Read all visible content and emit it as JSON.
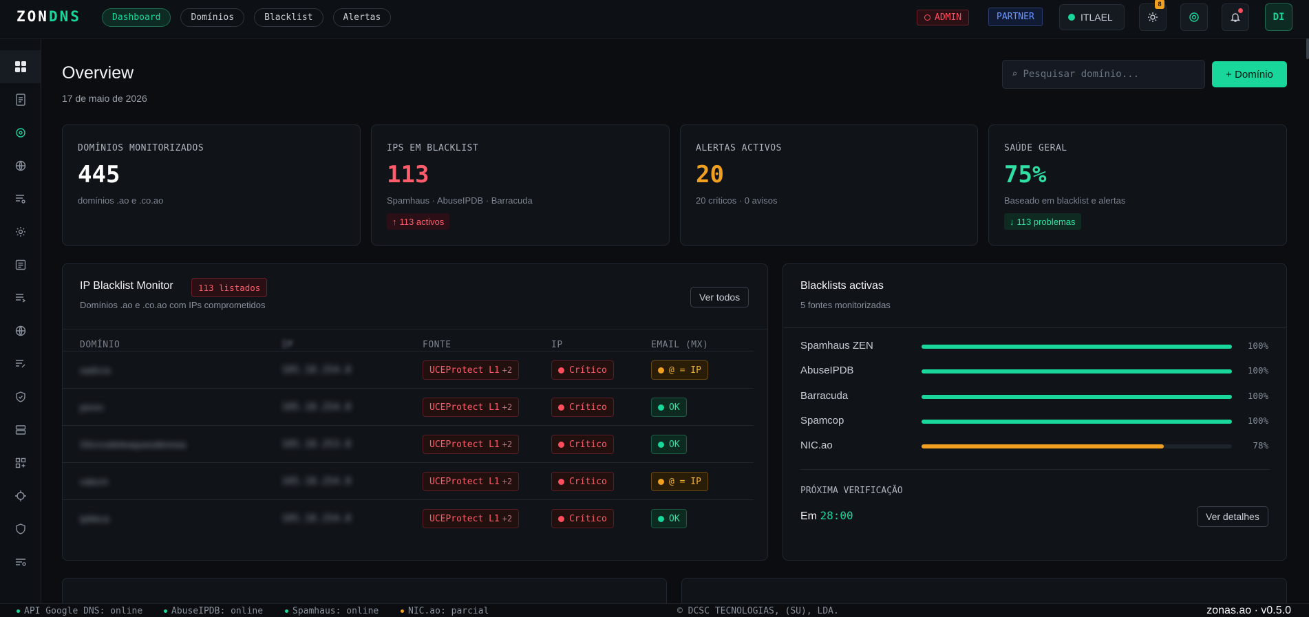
{
  "app": {
    "logo_a": "ZON",
    "logo_b": "DNS",
    "brand_color": "#19d69a"
  },
  "nav": {
    "tabs": [
      {
        "label": "Dashboard",
        "active": true
      },
      {
        "label": "Domínios"
      },
      {
        "label": "Blacklist"
      },
      {
        "label": "Alertas"
      }
    ]
  },
  "topbar": {
    "admin_label": "ADMIN",
    "partner_label": "PARTNER",
    "user_name": "ITLAEL",
    "notif_count": "8",
    "avatar_initials": "DI",
    "icons": [
      "sun-icon",
      "target-icon",
      "bell-icon"
    ]
  },
  "sidebar": {
    "items": [
      "dashboard-icon",
      "document-icon",
      "target-icon",
      "globe-icon",
      "list-settings-icon",
      "gear-icon",
      "notes-icon",
      "list-arrow-icon",
      "globe-icon",
      "list-edit-icon",
      "shield-check-icon",
      "server-icon",
      "apps-add-icon",
      "crosshair-icon",
      "shield-icon",
      "filter-list-icon"
    ]
  },
  "header": {
    "title": "Overview",
    "date": "17 de maio de 2026",
    "search_placeholder": "Pesquisar domínio...",
    "add_button": "+ Domínio"
  },
  "stats": [
    {
      "label": "DOMÍNIOS MONITORIZADOS",
      "value": "445",
      "sub": "domínios .ao e .co.ao",
      "color": "#ffffff"
    },
    {
      "label": "IPS EM BLACKLIST",
      "value": "113",
      "sub": "Spamhaus · AbuseIPDB · Barracuda",
      "chip": "113 activos",
      "color": "#ff5d6c"
    },
    {
      "label": "ALERTAS ACTIVOS",
      "value": "20",
      "sub": "20 críticos · 0 avisos",
      "color": "#f0a020"
    },
    {
      "label": "SAÚDE GERAL",
      "value": "75%",
      "sub": "Baseado em blacklist e alertas",
      "chip": "113 problemas",
      "color": "#2fe0a4"
    }
  ],
  "blacklist_monitor": {
    "title": "IP Blacklist Monitor",
    "badge": "113 listados",
    "subtitle": "Domínios .ao e .co.ao com IPs comprometidos",
    "view_all": "Ver todos",
    "columns": [
      "DOMÍNIO",
      "IP",
      "FONTE",
      "IP",
      "EMAIL (MX)"
    ],
    "rows": [
      {
        "domain": "sadcca",
        "ip": "105.18.254.8",
        "source": "UCEProtect L1",
        "more": "+2",
        "status": "Crítico",
        "mx": "@ = IP",
        "mx_state": "warn"
      },
      {
        "domain": "pinnn",
        "ip": "105.18.254.8",
        "source": "UCEProtect L1",
        "more": "+2",
        "status": "Crítico",
        "mx": "OK",
        "mx_state": "ok"
      },
      {
        "domain": "33crcodeteaqueodenosa",
        "ip": "105.18.253.8",
        "source": "UCEProtect L1",
        "more": "+2",
        "status": "Crítico",
        "mx": "OK",
        "mx_state": "ok"
      },
      {
        "domain": "vabcm",
        "ip": "105.18.254.8",
        "source": "UCEProtect L1",
        "more": "+2",
        "status": "Crítico",
        "mx": "@ = IP",
        "mx_state": "warn"
      },
      {
        "domain": "ipikkca",
        "ip": "105.18.254.8",
        "source": "UCEProtect L1",
        "more": "+2",
        "status": "Crítico",
        "mx": "OK",
        "mx_state": "ok"
      }
    ]
  },
  "blacklists": {
    "title": "Blacklists activas",
    "subtitle": "5 fontes monitorizadas",
    "items": [
      {
        "name": "Spamhaus ZEN",
        "pct_label": "100%",
        "fraction": 1.0,
        "color": "#19d69a"
      },
      {
        "name": "AbuseIPDB",
        "pct_label": "100%",
        "fraction": 1.0,
        "color": "#19d69a"
      },
      {
        "name": "Barracuda",
        "pct_label": "100%",
        "fraction": 1.0,
        "color": "#19d69a"
      },
      {
        "name": "Spamcop",
        "pct_label": "100%",
        "fraction": 1.0,
        "color": "#19d69a"
      },
      {
        "name": "NIC.ao",
        "pct_label": "78%",
        "fraction": 0.78,
        "color": "#f0a020"
      }
    ],
    "next_check_label": "PRÓXIMA VERIFICAÇÃO",
    "next_check_prefix": "Em",
    "next_check_time": "28:00",
    "details_button": "Ver detalhes"
  },
  "footer": {
    "items": [
      {
        "text": "API Google DNS: online",
        "color": "#19d69a"
      },
      {
        "text": "AbuseIPDB: online",
        "color": "#19d69a"
      },
      {
        "text": "Spamhaus: online",
        "color": "#19d69a"
      },
      {
        "text": "NIC.ao: parcial",
        "color": "#f0a020"
      }
    ],
    "copyright": "© DCSC TECNOLOGIAS, (SU), LDA.",
    "version": "zonas.ao · v0.5.0"
  }
}
